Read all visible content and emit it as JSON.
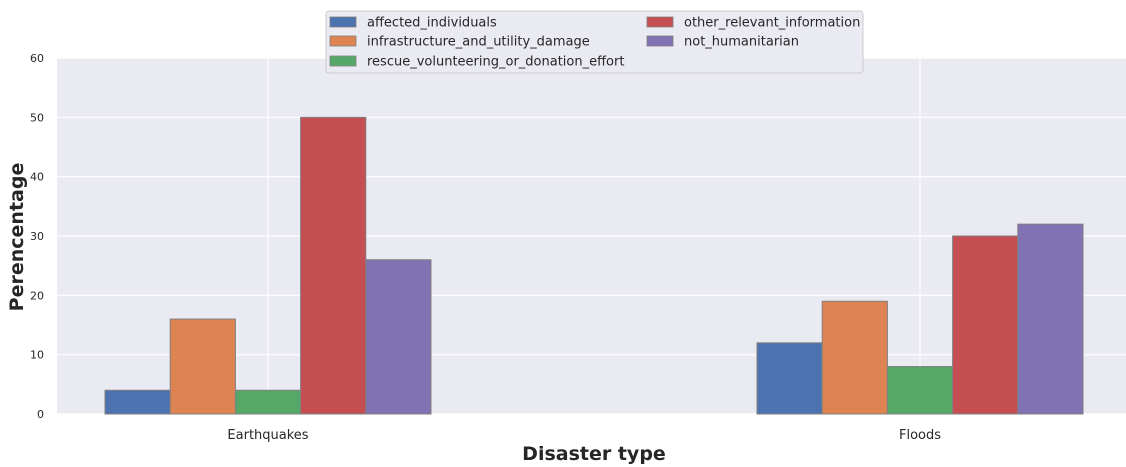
{
  "chart_data": {
    "type": "bar",
    "xlabel": "Disaster type",
    "ylabel": "Perencentage",
    "ylim": [
      0,
      60
    ],
    "yticks": [
      0,
      10,
      20,
      30,
      40,
      50,
      60
    ],
    "grid": true,
    "legend_position": "top-center",
    "categories": [
      "Earthquakes",
      "Floods"
    ],
    "series": [
      {
        "name": "affected_individuals",
        "color": "#4c72b0",
        "values": [
          4,
          12
        ]
      },
      {
        "name": "infrastructure_and_utility_damage",
        "color": "#dd8452",
        "values": [
          16,
          19
        ]
      },
      {
        "name": "rescue_volunteering_or_donation_effort",
        "color": "#55a868",
        "values": [
          4,
          8
        ]
      },
      {
        "name": "other_relevant_information",
        "color": "#c44e52",
        "values": [
          50,
          30
        ]
      },
      {
        "name": "not_humanitarian",
        "color": "#8172b3",
        "values": [
          26,
          32
        ]
      }
    ]
  }
}
